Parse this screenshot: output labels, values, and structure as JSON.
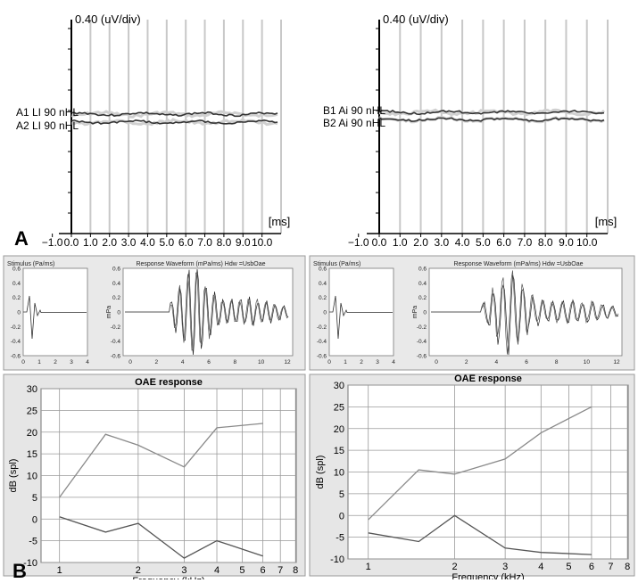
{
  "panel_labels": {
    "a": "A",
    "b": "B"
  },
  "abr": [
    {
      "scale_label": "0.40 (uV/div)",
      "unit_label": "[ms]",
      "ticks": [
        "−1.0",
        "0.0",
        "1.0",
        "2.0",
        "3.0",
        "4.0",
        "5.0",
        "6.0",
        "7.0",
        "8.0",
        "9.0",
        "10.0"
      ],
      "trace_labels": [
        "A1 LI 90 nHL",
        "A2 LI 90 nHL"
      ]
    },
    {
      "scale_label": "0.40 (uV/div)",
      "unit_label": "[ms]",
      "ticks": [
        "−1.0",
        "0.0",
        "1.0",
        "2.0",
        "3.0",
        "4.0",
        "5.0",
        "6.0",
        "7.0",
        "8.0",
        "9.0",
        "10.0"
      ],
      "trace_labels": [
        "B1 Ai 90 nHL",
        "B2 Ai 90 nHL"
      ]
    }
  ],
  "waveform_panels": [
    {
      "stimulus_title": "Stimulus (Pa/ms)",
      "stimulus_yticks": [
        "0.6",
        "0.4",
        "0.2",
        "0",
        "-0.2",
        "-0.4",
        "-0.6"
      ],
      "stimulus_xticks": [
        "0",
        "1",
        "2",
        "3",
        "4"
      ],
      "response_title": "Response Waveform (mPa/ms) Hdw =UsbOae",
      "response_ylabel": "mPa",
      "response_yticks": [
        "0.6",
        "0.4",
        "0.2",
        "0",
        "-0.2",
        "-0.4",
        "-0.6"
      ],
      "response_xticks": [
        "0",
        "2",
        "4",
        "6",
        "8",
        "10",
        "12"
      ]
    },
    {
      "stimulus_title": "Stimulus (Pa/ms)",
      "stimulus_yticks": [
        "0.6",
        "0.4",
        "0.2",
        "0",
        "-0.2",
        "-0.4",
        "-0.6"
      ],
      "stimulus_xticks": [
        "0",
        "1",
        "2",
        "3",
        "4"
      ],
      "response_title": "Response Waveform (mPa/ms) Hdw =UsbOae",
      "response_ylabel": "mPa",
      "response_yticks": [
        "0.6",
        "0.4",
        "0.2",
        "0",
        "-0.2",
        "-0.4",
        "-0.6"
      ],
      "response_xticks": [
        "0",
        "2",
        "4",
        "6",
        "8",
        "10",
        "12"
      ]
    }
  ],
  "chart_data": [
    {
      "type": "line",
      "title": "OAE response",
      "xlabel": "Frequency (kHz)",
      "ylabel": "dB (spl)",
      "xscale": "log",
      "xticks": [
        "1",
        "2",
        "3",
        "4",
        "5",
        "6",
        "7",
        "8"
      ],
      "yticks": [
        "30",
        "25",
        "20",
        "15",
        "10",
        "5",
        "0",
        "-5",
        "-10"
      ],
      "ylim": [
        -10,
        30
      ],
      "grid": true,
      "series": [
        {
          "x": [
            1,
            1.5,
            2,
            3,
            4,
            6
          ],
          "values": [
            5,
            19.5,
            17,
            12,
            21,
            22
          ],
          "color": "#8a8a8a"
        },
        {
          "x": [
            1,
            1.5,
            2,
            3,
            4,
            6
          ],
          "values": [
            0.5,
            -3,
            -1,
            -9,
            -5,
            -8.5
          ],
          "color": "#555555"
        }
      ]
    },
    {
      "type": "line",
      "title": "OAE response",
      "xlabel": "Frequency (kHz)",
      "ylabel": "dB (spl)",
      "xscale": "log",
      "xticks": [
        "1",
        "2",
        "3",
        "4",
        "5",
        "6",
        "7",
        "8"
      ],
      "yticks": [
        "30",
        "25",
        "20",
        "15",
        "10",
        "5",
        "0",
        "-5",
        "-10"
      ],
      "ylim": [
        -10,
        30
      ],
      "grid": true,
      "series": [
        {
          "x": [
            1,
            1.5,
            2,
            3,
            4,
            6
          ],
          "values": [
            -1,
            10.5,
            9.5,
            13,
            19,
            25
          ],
          "color": "#8a8a8a"
        },
        {
          "x": [
            1,
            1.5,
            2,
            3,
            4,
            6
          ],
          "values": [
            -4,
            -6,
            0,
            -7.5,
            -8.5,
            -9
          ],
          "color": "#555555"
        }
      ]
    }
  ]
}
